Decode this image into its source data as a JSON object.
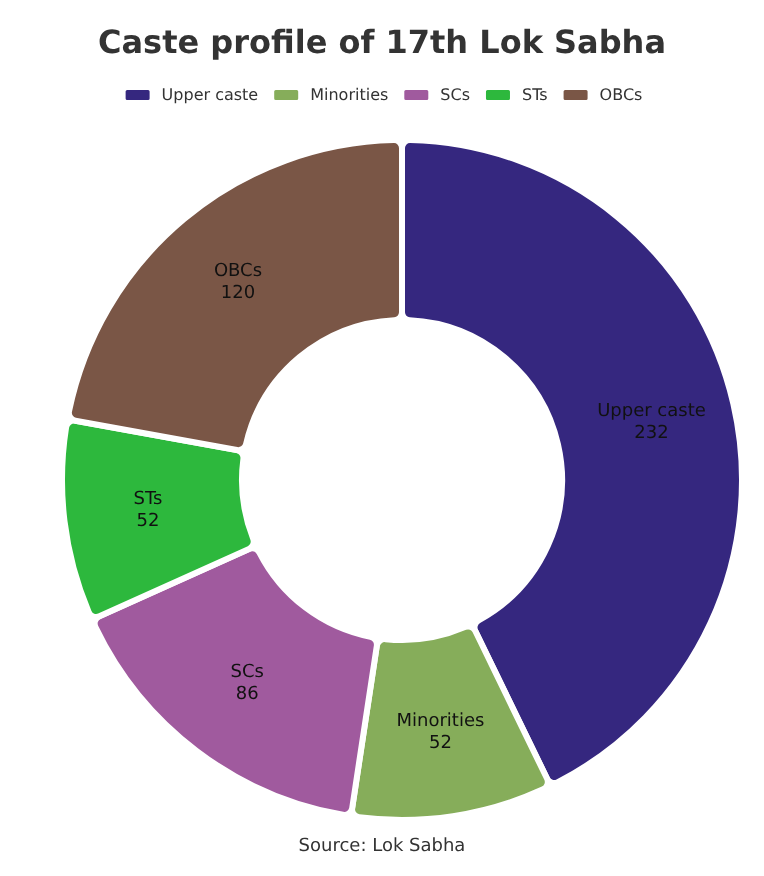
{
  "chart_data": {
    "type": "donut",
    "title": "Caste profile of 17th Lok Sabha",
    "categories": [
      "Upper caste",
      "Minorities",
      "SCs",
      "STs",
      "OBCs"
    ],
    "values": [
      232,
      52,
      86,
      52,
      120
    ],
    "colors": [
      "#35277f",
      "#86ad5a",
      "#a05a9e",
      "#2db83d",
      "#7a5646"
    ],
    "data_labels": true,
    "legend": "top",
    "annotations": [
      "Source: Lok Sabha"
    ]
  }
}
